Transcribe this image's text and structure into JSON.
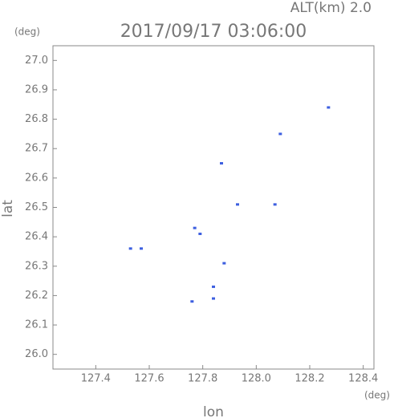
{
  "chart_data": {
    "type": "scatter",
    "title": "2017/09/17 03:06:00",
    "subtitle": "ALT(km) 2.0",
    "x_label": "lon",
    "y_label": "lat",
    "x_unit": "(deg)",
    "y_unit": "(deg)",
    "color": "#3d5fe0",
    "x": [
      128.27,
      128.09,
      127.87,
      127.93,
      128.07,
      127.77,
      127.79,
      127.53,
      127.57,
      127.88,
      127.84,
      127.84,
      127.76
    ],
    "values": [
      26.84,
      26.75,
      26.65,
      26.51,
      26.51,
      26.43,
      26.41,
      26.36,
      26.36,
      26.31,
      26.23,
      26.19,
      26.18
    ],
    "xlim": [
      127.24,
      128.44
    ],
    "ylim": [
      25.95,
      27.05
    ],
    "xticks": [
      127.4,
      127.6,
      127.8,
      {
        "value": 128.0,
        "label": "128.0"
      },
      128.2,
      128.4
    ],
    "yticks": [
      {
        "value": 26.0,
        "label": "26.0"
      },
      26.1,
      26.2,
      26.3,
      26.4,
      26.5,
      26.6,
      26.7,
      26.8,
      26.9,
      {
        "value": 27.0,
        "label": "27.0"
      }
    ]
  }
}
